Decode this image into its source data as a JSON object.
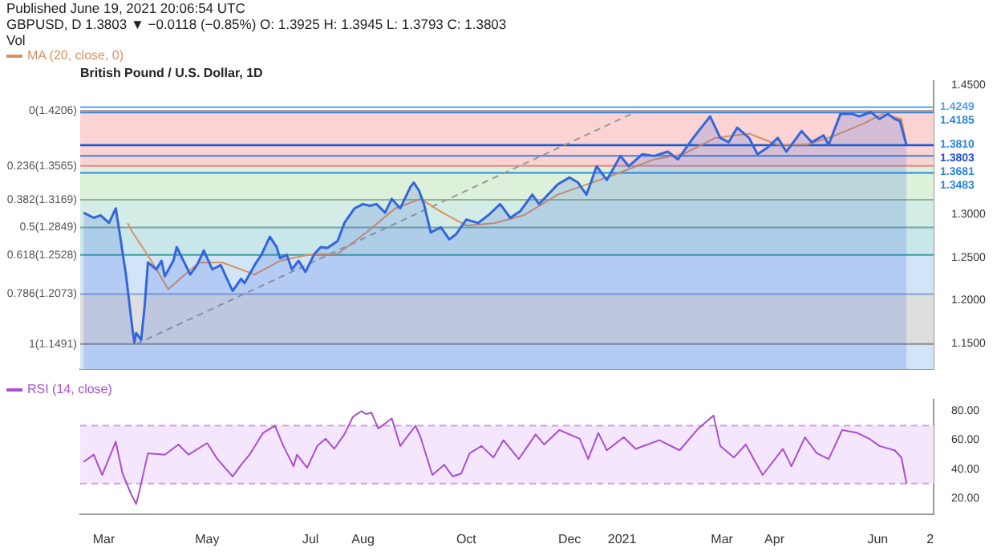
{
  "chart_data": [
    {
      "type": "area",
      "title": "British Pound / U.S. Dollar, 1D",
      "annotations": [
        "Published June 19, 2021 20:06:54 UTC",
        "GBPUSD, D 1.3803 ▼ −0.0118 (−0.85%) O: 1.3925 H: 1.3945 L: 1.3793 C: 1.3803",
        "Vol"
      ],
      "legend": "top left",
      "tick_labels": "y",
      "xlim": [
        "2020-02-16",
        "2021-07-04"
      ],
      "ylim": [
        1.12,
        1.455
      ],
      "yticks": [
        {
          "value": 1.15,
          "label": "1.1500"
        },
        {
          "value": 1.2,
          "label": "1.2000"
        },
        {
          "value": 1.25,
          "label": "1.2500"
        },
        {
          "value": 1.3,
          "label": "1.3000"
        },
        {
          "value": 1.45,
          "label": "1.4500"
        }
      ],
      "series": [
        {
          "color": "#3366dd",
          "x": [
            "2020-02-18",
            "2020-02-24",
            "2020-02-28",
            "2020-03-04",
            "2020-03-08",
            "2020-03-10",
            "2020-03-14",
            "2020-03-18",
            "2020-03-19",
            "2020-03-20",
            "2020-03-23",
            "2020-03-25",
            "2020-03-27",
            "2020-04-01",
            "2020-04-04",
            "2020-04-06",
            "2020-04-11",
            "2020-04-13",
            "2020-04-17",
            "2020-04-21",
            "2020-04-25",
            "2020-04-29",
            "2020-05-04",
            "2020-05-09",
            "2020-05-12",
            "2020-05-16",
            "2020-05-21",
            "2020-05-23",
            "2020-05-29",
            "2020-06-02",
            "2020-06-07",
            "2020-06-11",
            "2020-06-13",
            "2020-06-17",
            "2020-06-20",
            "2020-06-24",
            "2020-06-28",
            "2020-07-03",
            "2020-07-07",
            "2020-07-11",
            "2020-07-17",
            "2020-07-21",
            "2020-07-27",
            "2020-08-01",
            "2020-08-05",
            "2020-08-09",
            "2020-08-14",
            "2020-08-18",
            "2020-08-23",
            "2020-08-29",
            "2020-08-31",
            "2020-09-03",
            "2020-09-06",
            "2020-09-10",
            "2020-09-16",
            "2020-09-21",
            "2020-09-25",
            "2020-10-01",
            "2020-10-08",
            "2020-10-14",
            "2020-10-21",
            "2020-10-27",
            "2020-11-02",
            "2020-11-09",
            "2020-11-13",
            "2020-11-24",
            "2020-12-01",
            "2020-12-06",
            "2020-12-11",
            "2020-12-17",
            "2020-12-23",
            "2020-12-31",
            "2021-01-05",
            "2021-01-13",
            "2021-01-20",
            "2021-01-28",
            "2021-02-03",
            "2021-02-12",
            "2021-02-22",
            "2021-02-28",
            "2021-03-05",
            "2021-03-10",
            "2021-03-17",
            "2021-03-22",
            "2021-03-28",
            "2021-04-03",
            "2021-04-08",
            "2021-04-17",
            "2021-04-23",
            "2021-04-30",
            "2021-05-03",
            "2021-05-10",
            "2021-05-17",
            "2021-05-21",
            "2021-05-28",
            "2021-06-02",
            "2021-06-07",
            "2021-06-11",
            "2021-06-14",
            "2021-06-18"
          ],
          "values": [
            1.302,
            1.296,
            1.299,
            1.29,
            1.307,
            1.282,
            1.23,
            1.164,
            1.151,
            1.162,
            1.154,
            1.192,
            1.244,
            1.236,
            1.246,
            1.228,
            1.246,
            1.262,
            1.246,
            1.23,
            1.241,
            1.258,
            1.236,
            1.241,
            1.228,
            1.211,
            1.225,
            1.22,
            1.241,
            1.253,
            1.274,
            1.262,
            1.249,
            1.253,
            1.236,
            1.246,
            1.233,
            1.253,
            1.262,
            1.261,
            1.269,
            1.29,
            1.307,
            1.312,
            1.31,
            1.312,
            1.302,
            1.318,
            1.307,
            1.332,
            1.337,
            1.328,
            1.312,
            1.279,
            1.285,
            1.271,
            1.277,
            1.294,
            1.29,
            1.299,
            1.312,
            1.296,
            1.304,
            1.323,
            1.312,
            1.335,
            1.343,
            1.337,
            1.323,
            1.356,
            1.34,
            1.368,
            1.356,
            1.37,
            1.368,
            1.373,
            1.364,
            1.389,
            1.414,
            1.389,
            1.384,
            1.401,
            1.389,
            1.37,
            1.378,
            1.389,
            1.373,
            1.397,
            1.384,
            1.392,
            1.381,
            1.417,
            1.417,
            1.414,
            1.419,
            1.411,
            1.417,
            1.411,
            1.409,
            1.3803
          ]
        },
        {
          "type": "line",
          "name": "MA (20, close, 0)",
          "color": "#d9925f",
          "x": [
            "2020-03-15",
            "2020-03-18",
            "2020-03-29",
            "2020-04-08",
            "2020-04-15",
            "2020-04-26",
            "2020-05-10",
            "2020-05-29",
            "2020-06-13",
            "2020-06-30",
            "2020-07-17",
            "2020-08-03",
            "2020-08-20",
            "2020-09-04",
            "2020-09-17",
            "2020-10-01",
            "2020-10-18",
            "2020-11-04",
            "2020-11-24",
            "2020-12-23",
            "2021-01-20",
            "2021-02-06",
            "2021-02-25",
            "2021-03-17",
            "2021-04-03",
            "2021-04-20",
            "2021-05-07",
            "2021-05-24",
            "2021-06-04",
            "2021-06-15",
            "2021-06-18"
          ],
          "values": [
            1.29,
            1.279,
            1.246,
            1.213,
            1.225,
            1.244,
            1.244,
            1.23,
            1.246,
            1.253,
            1.254,
            1.279,
            1.307,
            1.318,
            1.302,
            1.287,
            1.29,
            1.299,
            1.323,
            1.343,
            1.364,
            1.37,
            1.389,
            1.394,
            1.381,
            1.381,
            1.392,
            1.406,
            1.417,
            1.411,
            1.381
          ]
        },
        {
          "type": "line",
          "line_style": "dashed",
          "color": "#999999",
          "x": [
            "2020-03-20",
            "2021-01-11"
          ],
          "values": [
            1.149,
            1.421
          ]
        }
      ],
      "bands": [
        {
          "axis": "y",
          "from": 1.3565,
          "to": 1.4206,
          "label": "0(1.4206)",
          "color": "#fbd3d3"
        },
        {
          "axis": "y",
          "from": 1.3169,
          "to": 1.3565,
          "label": "0.236(1.3565)",
          "color": "#dcf0da"
        },
        {
          "axis": "y",
          "from": 1.2849,
          "to": 1.3169,
          "label": "0.382(1.3169)",
          "color": "#d3ece6"
        },
        {
          "axis": "y",
          "from": 1.2528,
          "to": 1.2849,
          "label": "0.5(1.2849)",
          "color": "#c9e6ea"
        },
        {
          "axis": "y",
          "from": 1.2073,
          "to": 1.2528,
          "label": "0.618(1.2528)",
          "color": "#d2e4f8"
        },
        {
          "axis": "y",
          "from": 1.1491,
          "to": 1.2073,
          "label": "0.786(1.2073)",
          "color": "#dedede"
        },
        {
          "axis": "y",
          "from": 1.12,
          "to": 1.1491,
          "label": "1(1.1491)",
          "color": "#d2e4f8"
        }
      ],
      "ref_lines": [
        {
          "axis": "y",
          "value": 1.4206,
          "color": "#b89a9a"
        },
        {
          "axis": "y",
          "value": 1.3565,
          "color": "#e08a8a"
        },
        {
          "axis": "y",
          "value": 1.3169,
          "color": "#8fb58c"
        },
        {
          "axis": "y",
          "value": 1.2849,
          "color": "#78a8a0"
        },
        {
          "axis": "y",
          "value": 1.2528,
          "color": "#3aa0a0"
        },
        {
          "axis": "y",
          "value": 1.2073,
          "color": "#7aa4d8"
        },
        {
          "axis": "y",
          "value": 1.1491,
          "color": "#8a8a8a"
        },
        {
          "axis": "y",
          "value": 1.4249,
          "label": "1.4249",
          "color": "#5aa0e6"
        },
        {
          "axis": "y",
          "value": 1.4185,
          "label": "1.4185",
          "color": "#2f86e0"
        },
        {
          "axis": "y",
          "value": 1.381,
          "label": "1.3810",
          "color": "#2f86e0"
        },
        {
          "axis": "y",
          "value": 1.3803,
          "label": "1.3803",
          "color": "#1f4fd6"
        },
        {
          "axis": "y",
          "value": 1.3681,
          "label": "1.3681",
          "color": "#2f86e0"
        },
        {
          "axis": "y",
          "value": 1.3483,
          "label": "1.3483",
          "color": "#2f86e0"
        }
      ]
    },
    {
      "type": "line",
      "legend": "top left",
      "xlim": [
        "2020-02-16",
        "2021-07-04"
      ],
      "xticks": [
        {
          "value": "2020-03-01",
          "label": "Mar"
        },
        {
          "value": "2020-05-01",
          "label": "May"
        },
        {
          "value": "2020-07-01",
          "label": "Jul"
        },
        {
          "value": "2020-08-01",
          "label": "Aug"
        },
        {
          "value": "2020-10-01",
          "label": "Oct"
        },
        {
          "value": "2020-12-01",
          "label": "Dec"
        },
        {
          "value": "2021-01-01",
          "label": "2021"
        },
        {
          "value": "2021-03-01",
          "label": "Mar"
        },
        {
          "value": "2021-04-01",
          "label": "Apr"
        },
        {
          "value": "2021-06-01",
          "label": "Jun"
        },
        {
          "value": "2021-07-02",
          "label": "2"
        }
      ],
      "ylim": [
        9,
        88
      ],
      "yticks": [
        {
          "value": 20,
          "label": "20.00"
        },
        {
          "value": 40,
          "label": "40.00"
        },
        {
          "value": 60,
          "label": "60.00"
        },
        {
          "value": 80,
          "label": "80.00"
        }
      ],
      "series": [
        {
          "name": "RSI (14, close)",
          "color": "#a94fd0",
          "x": [
            "2020-02-18",
            "2020-02-24",
            "2020-02-29",
            "2020-03-08",
            "2020-03-12",
            "2020-03-17",
            "2020-03-20",
            "2020-03-22",
            "2020-03-27",
            "2020-04-06",
            "2020-04-14",
            "2020-04-20",
            "2020-05-01",
            "2020-05-07",
            "2020-05-16",
            "2020-05-21",
            "2020-05-26",
            "2020-06-03",
            "2020-06-10",
            "2020-06-15",
            "2020-06-21",
            "2020-06-23",
            "2020-06-29",
            "2020-07-05",
            "2020-07-10",
            "2020-07-15",
            "2020-07-21",
            "2020-07-26",
            "2020-07-31",
            "2020-08-03",
            "2020-08-06",
            "2020-08-10",
            "2020-08-18",
            "2020-08-23",
            "2020-09-01",
            "2020-09-04",
            "2020-09-11",
            "2020-09-18",
            "2020-09-23",
            "2020-09-28",
            "2020-10-03",
            "2020-10-10",
            "2020-10-17",
            "2020-10-23",
            "2020-11-01",
            "2020-11-11",
            "2020-11-16",
            "2020-11-25",
            "2020-12-07",
            "2020-12-12",
            "2020-12-18",
            "2020-12-23",
            "2021-01-02",
            "2021-01-09",
            "2021-01-23",
            "2021-02-04",
            "2021-02-15",
            "2021-02-24",
            "2021-02-28",
            "2021-03-08",
            "2021-03-15",
            "2021-03-25",
            "2021-04-06",
            "2021-04-11",
            "2021-04-19",
            "2021-04-26",
            "2021-05-03",
            "2021-05-11",
            "2021-05-20",
            "2021-05-27",
            "2021-06-02",
            "2021-06-11",
            "2021-06-15",
            "2021-06-18"
          ],
          "values": [
            45,
            50,
            36,
            59,
            37,
            23,
            16,
            25,
            51,
            50,
            57,
            50,
            58,
            47,
            35,
            43,
            50,
            65,
            70,
            56,
            42,
            50,
            41,
            56,
            61,
            54,
            64,
            76,
            80,
            78,
            79,
            68,
            75,
            56,
            70,
            62,
            36,
            43,
            35,
            37,
            51,
            56,
            48,
            60,
            47,
            64,
            57,
            67,
            61,
            47,
            65,
            53,
            62,
            54,
            60,
            53,
            68,
            77,
            56,
            48,
            57,
            36,
            54,
            42,
            62,
            51,
            47,
            67,
            65,
            61,
            56,
            53,
            48,
            30
          ]
        }
      ],
      "bands": [
        {
          "axis": "y",
          "from": 30,
          "to": 70,
          "color": "#f4e6fc"
        }
      ],
      "ref_lines": [
        {
          "axis": "y",
          "value": 70,
          "color": "#c9a6e0",
          "line_style": "dashed"
        },
        {
          "axis": "y",
          "value": 30,
          "color": "#c9a6e0",
          "line_style": "dashed"
        }
      ]
    }
  ]
}
